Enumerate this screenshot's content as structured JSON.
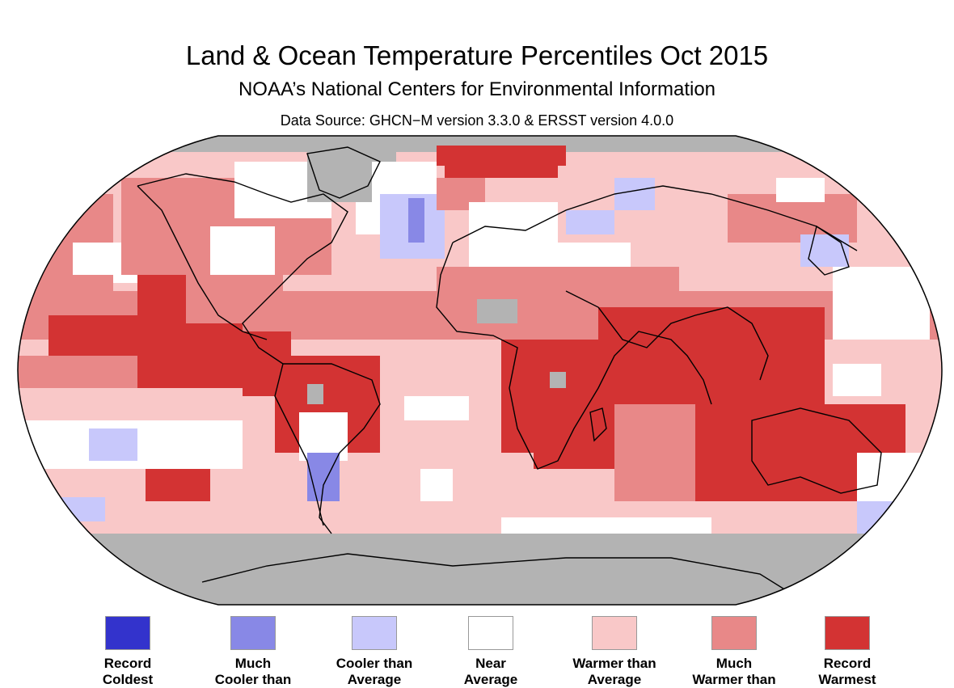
{
  "header": {
    "title": "Land & Ocean Temperature Percentiles Oct 2015",
    "subtitle": "NOAA’s National Centers for Environmental Information",
    "source": "Data Source: GHCN−M version 3.3.0 & ERSST version 4.0.0"
  },
  "colors": {
    "record_coldest": "#3333cc",
    "much_cooler": "#8888e6",
    "cooler": "#c8c8fb",
    "near": "#ffffff",
    "warmer": "#f9c8c8",
    "much_warmer": "#e88888",
    "record_warmest": "#d33333",
    "no_data": "#b3b3b3",
    "coast": "#000000",
    "border": "#555555"
  },
  "legend": [
    {
      "label": "Record\nColdest",
      "color": "#3333cc"
    },
    {
      "label": "Much\nCooler than",
      "color": "#8888e6"
    },
    {
      "label": "Cooler than\nAverage",
      "color": "#c8c8fb"
    },
    {
      "label": "Near\nAverage",
      "color": "#ffffff"
    },
    {
      "label": "Warmer than\nAverage",
      "color": "#f9c8c8"
    },
    {
      "label": "Much\nWarmer than",
      "color": "#e88888"
    },
    {
      "label": "Record\nWarmest",
      "color": "#d33333"
    }
  ]
}
